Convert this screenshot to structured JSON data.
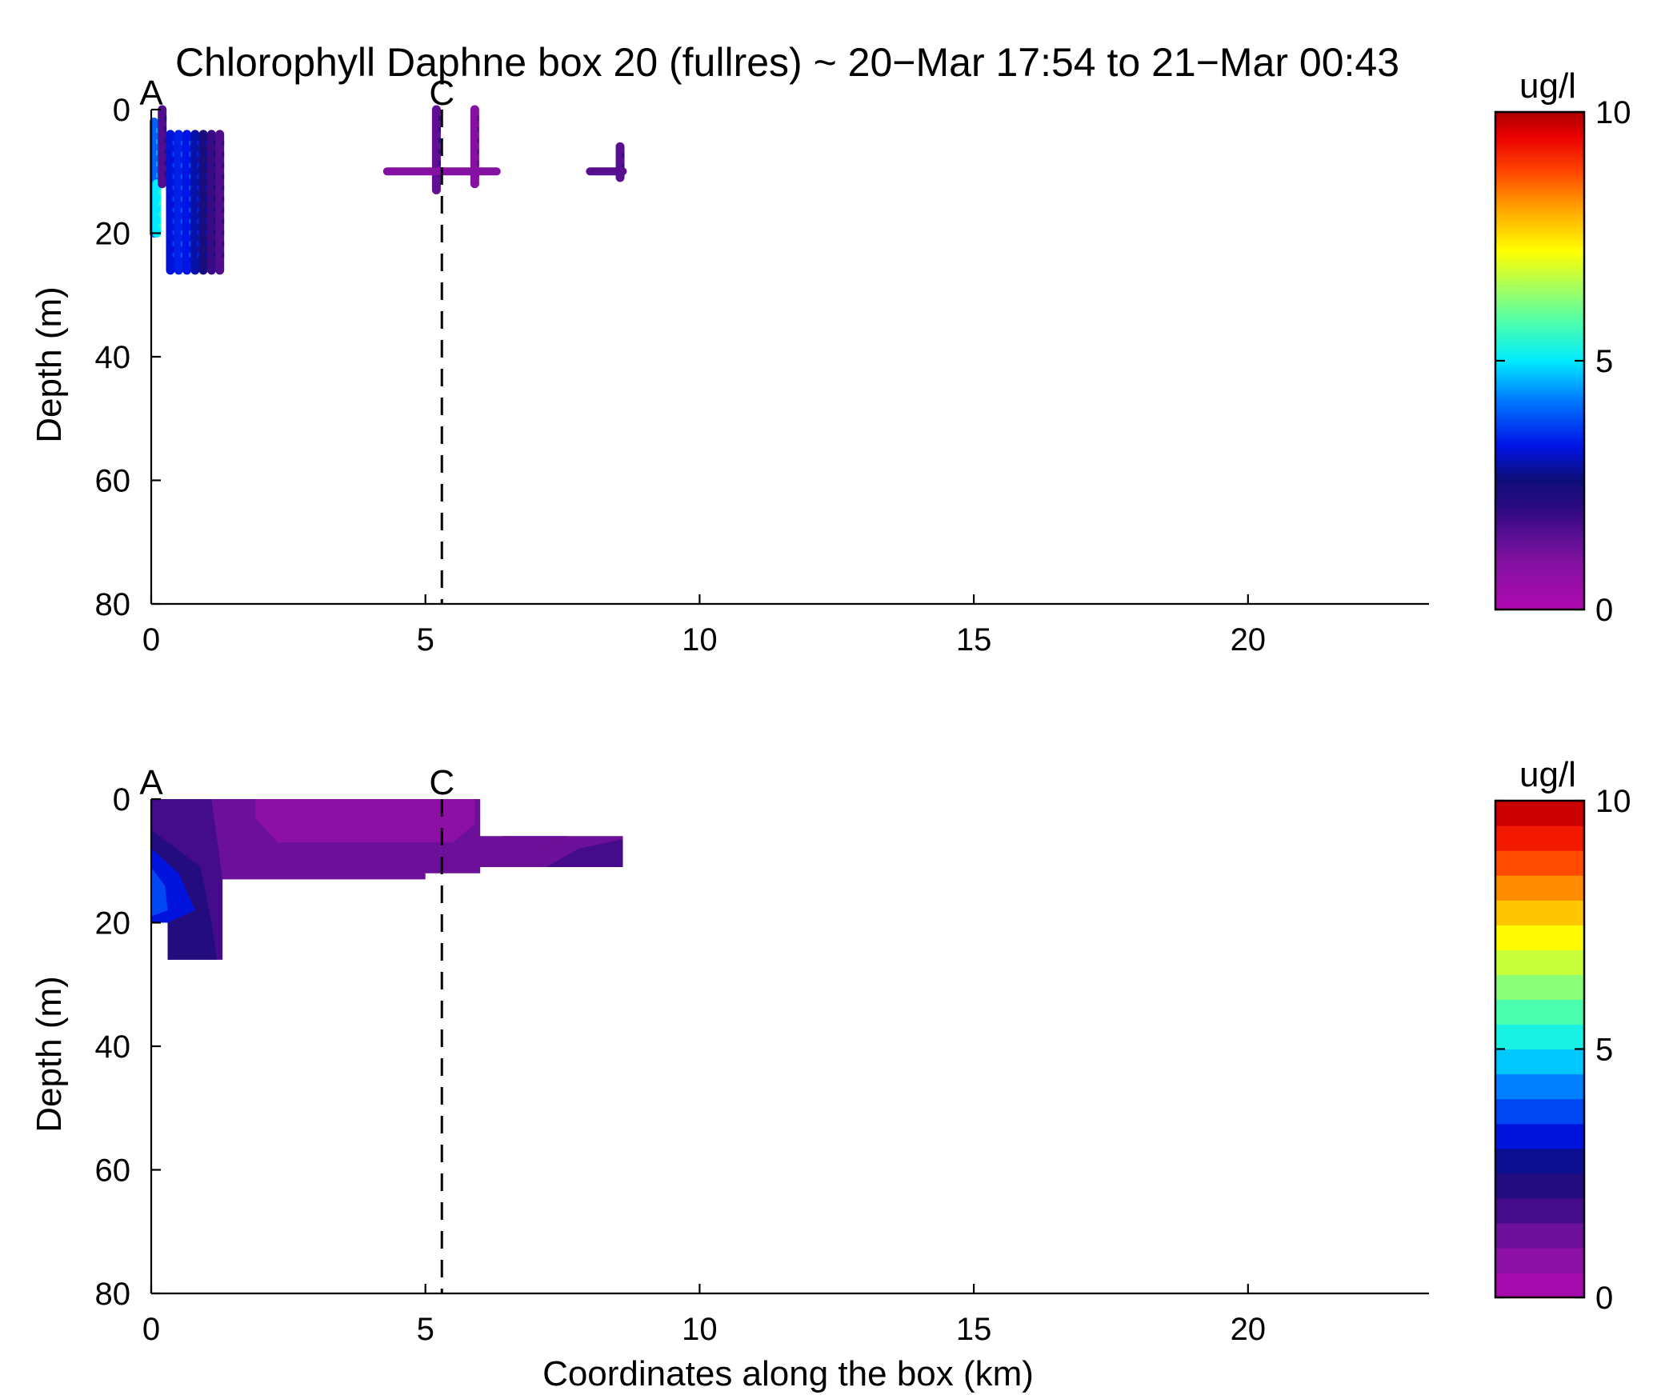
{
  "chart_data": [
    {
      "type": "scatter",
      "title": "Chlorophyll Daphne box 20 (fullres) ~ 20−Mar 17:54 to 21−Mar 00:43",
      "xlabel": "",
      "ylabel": "Depth (m)",
      "xlim": [
        0,
        23.3
      ],
      "ylim": [
        0,
        80
      ],
      "y_reversed": true,
      "xticks": [
        "0",
        "5",
        "10",
        "15",
        "20"
      ],
      "yticks": [
        "0",
        "20",
        "40",
        "60",
        "80"
      ],
      "markers": [
        {
          "label": "A",
          "x": 0.0,
          "dashed_line": false
        },
        {
          "label": "C",
          "x": 5.3,
          "dashed_line": true
        }
      ],
      "colorbar": {
        "unit": "ug/l",
        "min": 0,
        "max": 10,
        "ticks": [
          "0",
          "5",
          "10"
        ],
        "continuous": true
      },
      "series": [
        {
          "points": [
            {
              "x": 0.05,
              "d0": 2,
              "d1": 20,
              "v": 4.0
            },
            {
              "x": 0.1,
              "d0": 12,
              "d1": 20,
              "v": 5.0
            },
            {
              "x": 0.2,
              "d0": 0,
              "d1": 12,
              "v": 1.6
            },
            {
              "x": 0.35,
              "d0": 4,
              "d1": 26,
              "v": 3.2
            },
            {
              "x": 0.5,
              "d0": 4,
              "d1": 26,
              "v": 3.4
            },
            {
              "x": 0.65,
              "d0": 4,
              "d1": 26,
              "v": 3.3
            },
            {
              "x": 0.8,
              "d0": 4,
              "d1": 26,
              "v": 2.9
            },
            {
              "x": 0.95,
              "d0": 4,
              "d1": 26,
              "v": 2.4
            },
            {
              "x": 1.1,
              "d0": 4,
              "d1": 26,
              "v": 1.9
            },
            {
              "x": 1.25,
              "d0": 4,
              "d1": 26,
              "v": 1.6
            },
            {
              "x": 5.2,
              "d0": 0,
              "d1": 13,
              "v": 1.4
            },
            {
              "x": 5.9,
              "d0": 0,
              "d1": 12,
              "v": 0.9
            },
            {
              "x": 8.55,
              "d0": 6,
              "d1": 11,
              "v": 1.5
            }
          ],
          "horizontal_runs": [
            {
              "x0": 4.3,
              "x1": 6.3,
              "depth": 10,
              "v": 0.9
            },
            {
              "x0": 8.0,
              "x1": 8.6,
              "depth": 10,
              "v": 1.5
            }
          ]
        }
      ]
    },
    {
      "type": "heatmap",
      "title": "",
      "xlabel": "Coordinates along the box (km)",
      "ylabel": "Depth (m)",
      "xlim": [
        0,
        23.3
      ],
      "ylim": [
        0,
        80
      ],
      "y_reversed": true,
      "xticks": [
        "0",
        "5",
        "10",
        "15",
        "20"
      ],
      "yticks": [
        "0",
        "20",
        "40",
        "60",
        "80"
      ],
      "markers": [
        {
          "label": "A",
          "x": 0.0,
          "dashed_line": false
        },
        {
          "label": "C",
          "x": 5.3,
          "dashed_line": true
        }
      ],
      "colorbar": {
        "unit": "ug/l",
        "min": 0,
        "max": 10,
        "ticks": [
          "0",
          "5",
          "10"
        ],
        "levels": 20
      },
      "filled_contours": [
        {
          "v": 1.2,
          "poly": [
            [
              0,
              0
            ],
            [
              6.0,
              0
            ],
            [
              6.0,
              6
            ],
            [
              8.6,
              6
            ],
            [
              8.6,
              11
            ],
            [
              6.0,
              11
            ],
            [
              6.0,
              12
            ],
            [
              5.0,
              12
            ],
            [
              5.0,
              13
            ],
            [
              1.3,
              13
            ],
            [
              1.3,
              26
            ],
            [
              0.3,
              26
            ],
            [
              0.3,
              20
            ],
            [
              0,
              20
            ]
          ]
        },
        {
          "v": 0.5,
          "poly": [
            [
              1.9,
              0
            ],
            [
              5.9,
              0
            ],
            [
              5.9,
              4
            ],
            [
              5.5,
              7
            ],
            [
              4.0,
              7
            ],
            [
              2.3,
              7
            ],
            [
              1.9,
              3
            ]
          ]
        },
        {
          "v": 1.8,
          "poly": [
            [
              0,
              0
            ],
            [
              1.1,
              0
            ],
            [
              1.3,
              13
            ],
            [
              1.3,
              26
            ],
            [
              0.3,
              26
            ],
            [
              0.3,
              20
            ],
            [
              0,
              20
            ]
          ]
        },
        {
          "v": 2.3,
          "poly": [
            [
              0,
              5
            ],
            [
              0.9,
              11
            ],
            [
              1.1,
              20
            ],
            [
              1.2,
              26
            ],
            [
              0.3,
              26
            ],
            [
              0.3,
              20
            ],
            [
              0,
              20
            ]
          ]
        },
        {
          "v": 3.0,
          "poly": [
            [
              0,
              8
            ],
            [
              0.5,
              12
            ],
            [
              0.8,
              18
            ],
            [
              0.3,
              20
            ],
            [
              0,
              20
            ]
          ]
        },
        {
          "v": 3.7,
          "poly": [
            [
              0,
              11
            ],
            [
              0.25,
              14
            ],
            [
              0.3,
              18
            ],
            [
              0,
              19
            ]
          ]
        },
        {
          "v": 1.0,
          "poly": [
            [
              6.4,
              6
            ],
            [
              7.6,
              6
            ],
            [
              7.0,
              8.5
            ],
            [
              6.4,
              9
            ]
          ]
        },
        {
          "v": 1.5,
          "poly": [
            [
              7.8,
              8
            ],
            [
              8.6,
              6.5
            ],
            [
              8.6,
              11
            ],
            [
              7.2,
              11
            ]
          ]
        }
      ]
    }
  ]
}
